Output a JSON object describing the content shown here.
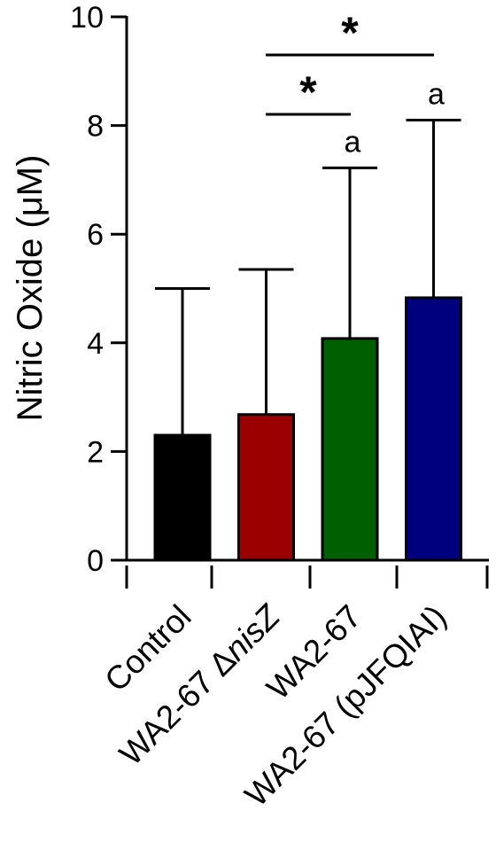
{
  "chart_data": {
    "type": "bar",
    "categories": [
      "Control",
      "WA2-67 ΔnisZ",
      "WA2-67",
      "WA2-67 (pJFQIAI)"
    ],
    "values": [
      2.3,
      2.68,
      4.08,
      4.83
    ],
    "error_upper": [
      5.0,
      5.35,
      7.22,
      8.1
    ],
    "colors": [
      "#000000",
      "#990000",
      "#006000",
      "#00007f"
    ],
    "ylabel": "Nitric Oxide (μM)",
    "ylim": [
      0,
      10
    ],
    "yticks": [
      "0",
      "2",
      "4",
      "6",
      "8",
      "10"
    ],
    "point_labels": [
      "",
      "",
      "a",
      "a"
    ],
    "significance": [
      {
        "from": 1,
        "to": 2,
        "label": "*",
        "level": 8.2
      },
      {
        "from": 1,
        "to": 3,
        "label": "*",
        "level": 9.3
      }
    ]
  }
}
